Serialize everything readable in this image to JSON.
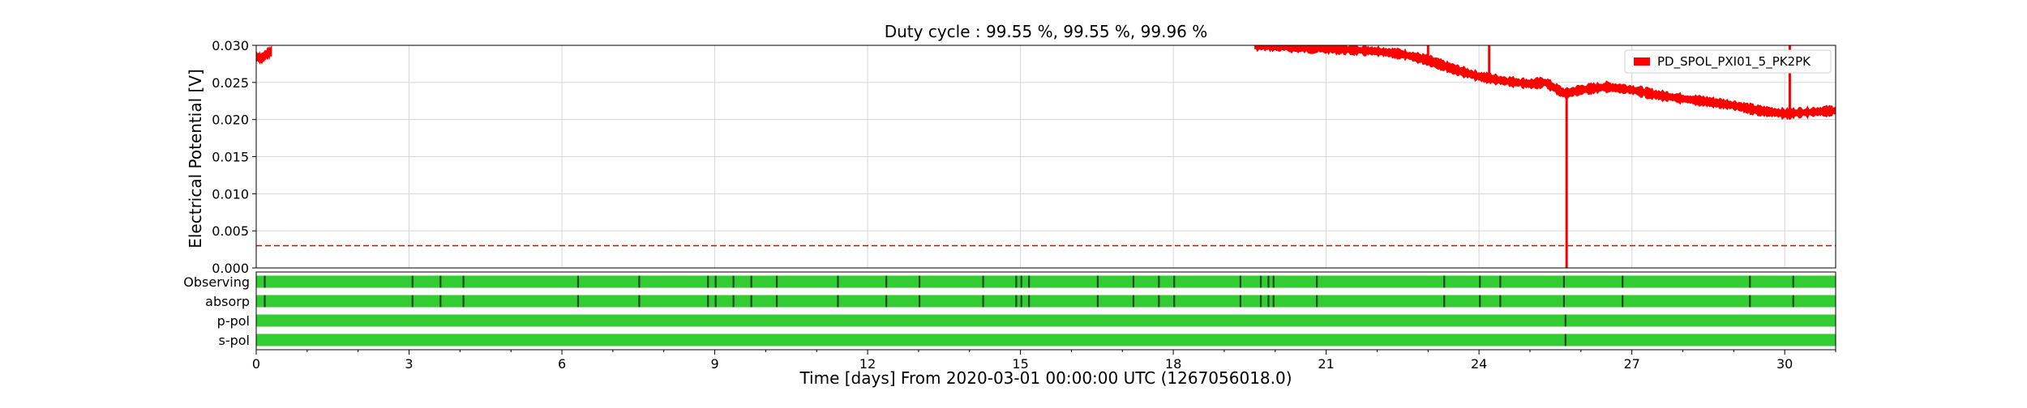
{
  "chart_data": {
    "type": "line",
    "title": "Duty cycle : 99.55 %, 99.55 %, 99.96 %",
    "xlabel": "Time [days] From 2020-03-01 00:00:00 UTC (1267056018.0)",
    "ylabel": "Electrical Potential [V]",
    "xlim": [
      0,
      31
    ],
    "ylim": [
      0,
      0.03
    ],
    "x_ticks": [
      "0",
      "3",
      "6",
      "9",
      "12",
      "15",
      "18",
      "21",
      "24",
      "27",
      "30"
    ],
    "y_ticks": [
      "0.000",
      "0.005",
      "0.010",
      "0.015",
      "0.020",
      "0.025",
      "0.030"
    ],
    "grid": true,
    "legend": {
      "position": "top-right",
      "entries": [
        "PD_SPOL_PXI01_5_PK2PK"
      ]
    },
    "threshold": {
      "value": 0.003,
      "color": "#e00000",
      "style": "dashed"
    },
    "series": [
      {
        "name": "PD_SPOL_PXI01_5_PK2PK",
        "color": "#ff0000",
        "x": [
          0.0,
          0.1,
          0.2,
          0.3,
          19.6,
          20.0,
          20.5,
          21.0,
          21.5,
          22.0,
          22.5,
          23.0,
          23.5,
          24.0,
          24.5,
          25.0,
          25.3,
          25.6,
          25.7,
          26.0,
          26.5,
          27.0,
          27.5,
          28.0,
          28.5,
          29.0,
          29.5,
          30.0,
          30.5,
          31.0
        ],
        "y": [
          0.0285,
          0.0282,
          0.0288,
          0.0292,
          0.03,
          0.0299,
          0.0297,
          0.0296,
          0.0294,
          0.0292,
          0.0288,
          0.028,
          0.0268,
          0.0258,
          0.0252,
          0.0248,
          0.025,
          0.0238,
          0.0235,
          0.024,
          0.0244,
          0.024,
          0.0233,
          0.0228,
          0.0224,
          0.0219,
          0.0212,
          0.0208,
          0.021,
          0.0212
        ],
        "spikes": [
          {
            "x": 25.72,
            "y_min": 0.0,
            "y_max": 0.024
          },
          {
            "x": 30.1,
            "y_min": 0.02,
            "y_max": 0.03
          },
          {
            "x": 24.2,
            "y_min": 0.026,
            "y_max": 0.03
          },
          {
            "x": 23.0,
            "y_min": 0.028,
            "y_max": 0.03
          }
        ]
      }
    ],
    "segments": [
      {
        "label": "Observing",
        "color": "#33cc33",
        "gap_color": "#1a4d1a",
        "gaps": [
          0.15,
          3.05,
          3.6,
          4.05,
          6.3,
          7.5,
          8.85,
          9.0,
          9.35,
          9.7,
          10.2,
          11.4,
          12.35,
          13.0,
          14.25,
          14.9,
          15.0,
          15.15,
          16.5,
          17.2,
          17.7,
          18.0,
          19.3,
          19.7,
          19.85,
          19.95,
          20.8,
          23.3,
          24.0,
          24.4,
          25.65,
          26.8,
          29.3,
          30.15
        ]
      },
      {
        "label": "absorp",
        "color": "#33cc33",
        "gap_color": "#1a4d1a",
        "gaps": [
          0.15,
          3.05,
          3.6,
          4.05,
          6.3,
          7.5,
          8.85,
          9.0,
          9.35,
          9.7,
          10.2,
          11.4,
          12.35,
          13.0,
          14.25,
          14.9,
          15.0,
          15.15,
          16.5,
          17.2,
          17.7,
          18.0,
          19.3,
          19.7,
          19.85,
          19.95,
          20.8,
          23.3,
          24.0,
          24.4,
          25.65,
          26.8,
          29.3,
          30.15
        ]
      },
      {
        "label": "p-pol",
        "color": "#33cc33",
        "gap_color": "#1a4d1a",
        "gaps": [
          25.68
        ]
      },
      {
        "label": "s-pol",
        "color": "#33cc33",
        "gap_color": "#1a4d1a",
        "gaps": [
          25.68
        ]
      }
    ]
  }
}
